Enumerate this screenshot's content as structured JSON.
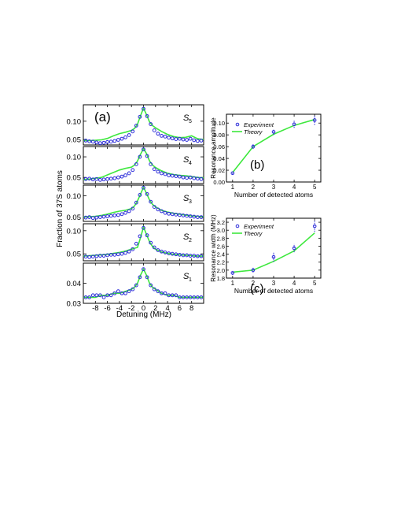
{
  "figure": {
    "panel_a_label": "(a)",
    "panel_b_label": "(b)",
    "panel_c_label": "(c)",
    "a_ylabel": "Fraction of 37S atoms",
    "a_xlabel": "Detuning (MHz)",
    "legend_experiment": "Experiment",
    "legend_theory": "Theory",
    "colors": {
      "experiment": "#2b2bd9",
      "theory": "#3ee83e",
      "axes": "#000000"
    }
  },
  "chart_data": [
    {
      "type": "line",
      "panel": "a",
      "x_range": [
        -10,
        10
      ],
      "x_ticks": [
        -8,
        -6,
        -4,
        -2,
        0,
        2,
        4,
        6,
        8
      ],
      "x_tick_labels": [
        "-8",
        "-6",
        "-4",
        "-2",
        "0",
        "2",
        "4",
        "6",
        "8"
      ],
      "xlabel": "Detuning (MHz)",
      "ylabel": "Fraction of 37S atoms",
      "subplots": [
        {
          "label": "S",
          "label_sub": "5",
          "ylim": [
            0.035,
            0.145
          ],
          "yticks": [
            0.05,
            0.1
          ],
          "ytick_labels": [
            "0.05",
            "0.10"
          ],
          "experiment": {
            "x": [
              -9.6,
              -9.0,
              -8.4,
              -7.8,
              -7.2,
              -6.6,
              -6.0,
              -5.4,
              -4.8,
              -4.2,
              -3.6,
              -3.0,
              -2.4,
              -1.8,
              -1.2,
              -0.6,
              0,
              0.6,
              1.2,
              1.8,
              2.4,
              3.0,
              3.6,
              4.2,
              4.8,
              5.4,
              6.0,
              6.6,
              7.2,
              7.8,
              8.4,
              9.0,
              9.6
            ],
            "y": [
              0.047,
              0.045,
              0.044,
              0.042,
              0.04,
              0.041,
              0.043,
              0.044,
              0.046,
              0.049,
              0.052,
              0.056,
              0.062,
              0.072,
              0.088,
              0.112,
              0.134,
              0.114,
              0.092,
              0.075,
              0.066,
              0.06,
              0.058,
              0.055,
              0.053,
              0.051,
              0.052,
              0.05,
              0.049,
              0.052,
              0.048,
              0.046,
              0.047
            ]
          },
          "theory": {
            "x": [
              -10,
              -9,
              -8,
              -7,
              -6,
              -5,
              -4,
              -3,
              -2,
              -1.5,
              -1,
              -0.5,
              0,
              0.5,
              1,
              1.5,
              2,
              3,
              4,
              5,
              6,
              7,
              8,
              9,
              10
            ],
            "y": [
              0.047,
              0.047,
              0.048,
              0.049,
              0.053,
              0.06,
              0.066,
              0.07,
              0.075,
              0.08,
              0.092,
              0.115,
              0.136,
              0.118,
              0.098,
              0.088,
              0.082,
              0.072,
              0.064,
              0.058,
              0.055,
              0.056,
              0.06,
              0.052,
              0.05
            ]
          }
        },
        {
          "label": "S",
          "label_sub": "4",
          "ylim": [
            0.035,
            0.125
          ],
          "yticks": [
            0.05,
            0.1
          ],
          "ytick_labels": [
            "0.05",
            "0.10"
          ],
          "experiment": {
            "x": [
              -9.6,
              -9.0,
              -8.4,
              -7.8,
              -7.2,
              -6.6,
              -6.0,
              -5.4,
              -4.8,
              -4.2,
              -3.6,
              -3.0,
              -2.4,
              -1.8,
              -1.2,
              -0.6,
              0,
              0.6,
              1.2,
              1.8,
              2.4,
              3.0,
              3.6,
              4.2,
              4.8,
              5.4,
              6.0,
              6.6,
              7.2,
              7.8,
              8.4,
              9.0,
              9.6
            ],
            "y": [
              0.046,
              0.047,
              0.045,
              0.046,
              0.044,
              0.045,
              0.046,
              0.047,
              0.048,
              0.05,
              0.052,
              0.055,
              0.06,
              0.068,
              0.082,
              0.1,
              0.118,
              0.102,
              0.082,
              0.07,
              0.064,
              0.06,
              0.058,
              0.055,
              0.054,
              0.053,
              0.052,
              0.05,
              0.049,
              0.05,
              0.048,
              0.047,
              0.046
            ]
          },
          "theory": {
            "x": [
              -10,
              -9,
              -8,
              -7,
              -6,
              -5,
              -4,
              -3,
              -2,
              -1.5,
              -1,
              -0.5,
              0,
              0.5,
              1,
              1.5,
              2,
              3,
              4,
              5,
              6,
              7,
              8,
              9,
              10
            ],
            "y": [
              0.045,
              0.046,
              0.048,
              0.05,
              0.056,
              0.062,
              0.068,
              0.072,
              0.075,
              0.08,
              0.09,
              0.106,
              0.12,
              0.108,
              0.09,
              0.08,
              0.074,
              0.066,
              0.06,
              0.057,
              0.055,
              0.054,
              0.052,
              0.05,
              0.049
            ]
          }
        },
        {
          "label": "S",
          "label_sub": "3",
          "ylim": [
            0.04,
            0.125
          ],
          "yticks": [
            0.05,
            0.1
          ],
          "ytick_labels": [
            "0.05",
            "0.10"
          ],
          "experiment": {
            "x": [
              -9.6,
              -9.0,
              -8.4,
              -7.8,
              -7.2,
              -6.6,
              -6.0,
              -5.4,
              -4.8,
              -4.2,
              -3.6,
              -3.0,
              -2.4,
              -1.8,
              -1.2,
              -0.6,
              0,
              0.6,
              1.2,
              1.8,
              2.4,
              3.0,
              3.6,
              4.2,
              4.8,
              5.4,
              6.0,
              6.6,
              7.2,
              7.8,
              8.4,
              9.0,
              9.6
            ],
            "y": [
              0.049,
              0.05,
              0.048,
              0.049,
              0.05,
              0.051,
              0.052,
              0.053,
              0.054,
              0.055,
              0.057,
              0.06,
              0.064,
              0.07,
              0.084,
              0.102,
              0.119,
              0.104,
              0.086,
              0.074,
              0.068,
              0.064,
              0.06,
              0.058,
              0.057,
              0.056,
              0.055,
              0.054,
              0.053,
              0.052,
              0.051,
              0.05,
              0.05
            ]
          },
          "theory": {
            "x": [
              -10,
              -9,
              -8,
              -7,
              -6,
              -5,
              -4,
              -3,
              -2,
              -1.5,
              -1,
              -0.5,
              0,
              0.5,
              1,
              1.5,
              2,
              3,
              4,
              5,
              6,
              7,
              8,
              9,
              10
            ],
            "y": [
              0.05,
              0.051,
              0.052,
              0.054,
              0.057,
              0.061,
              0.064,
              0.066,
              0.07,
              0.076,
              0.088,
              0.104,
              0.12,
              0.106,
              0.09,
              0.08,
              0.074,
              0.066,
              0.062,
              0.059,
              0.057,
              0.055,
              0.053,
              0.052,
              0.051
            ]
          }
        },
        {
          "label": "S",
          "label_sub": "2",
          "ylim": [
            0.035,
            0.115
          ],
          "yticks": [
            0.05,
            0.1
          ],
          "ytick_labels": [
            "0.05",
            "0.10"
          ],
          "experiment": {
            "x": [
              -9.6,
              -9.0,
              -8.4,
              -7.8,
              -7.2,
              -6.6,
              -6.0,
              -5.4,
              -4.8,
              -4.2,
              -3.6,
              -3.0,
              -2.4,
              -1.8,
              -1.2,
              -0.6,
              0,
              0.6,
              1.2,
              1.8,
              2.4,
              3.0,
              3.6,
              4.2,
              4.8,
              5.4,
              6.0,
              6.6,
              7.2,
              7.8,
              8.4,
              9.0,
              9.6
            ],
            "y": [
              0.044,
              0.043,
              0.044,
              0.045,
              0.046,
              0.046,
              0.047,
              0.048,
              0.048,
              0.049,
              0.05,
              0.052,
              0.055,
              0.06,
              0.072,
              0.088,
              0.106,
              0.09,
              0.074,
              0.064,
              0.058,
              0.055,
              0.053,
              0.051,
              0.05,
              0.049,
              0.048,
              0.047,
              0.047,
              0.046,
              0.046,
              0.045,
              0.045
            ]
          },
          "theory": {
            "x": [
              -10,
              -9,
              -8,
              -7,
              -6,
              -5,
              -4,
              -3,
              -2,
              -1.5,
              -1,
              -0.5,
              0,
              0.5,
              1,
              1.5,
              2,
              3,
              4,
              5,
              6,
              7,
              8,
              9,
              10
            ],
            "y": [
              0.045,
              0.046,
              0.047,
              0.048,
              0.049,
              0.051,
              0.053,
              0.056,
              0.06,
              0.062,
              0.064,
              0.085,
              0.108,
              0.092,
              0.076,
              0.066,
              0.06,
              0.054,
              0.051,
              0.049,
              0.048,
              0.047,
              0.046,
              0.045,
              0.045
            ]
          }
        },
        {
          "label": "S",
          "label_sub": "1",
          "ylim": [
            0.03,
            0.05
          ],
          "yticks": [
            0.03,
            0.04
          ],
          "ytick_labels": [
            "0.03",
            "0.04"
          ],
          "experiment": {
            "x": [
              -9.6,
              -9.0,
              -8.4,
              -7.8,
              -7.2,
              -6.6,
              -6.0,
              -5.4,
              -4.8,
              -4.2,
              -3.6,
              -3.0,
              -2.4,
              -1.8,
              -1.2,
              -0.6,
              0,
              0.6,
              1.2,
              1.8,
              2.4,
              3.0,
              3.6,
              4.2,
              4.8,
              5.4,
              6.0,
              6.6,
              7.2,
              7.8,
              8.4,
              9.0,
              9.6
            ],
            "y": [
              0.033,
              0.033,
              0.034,
              0.034,
              0.034,
              0.033,
              0.034,
              0.034,
              0.035,
              0.036,
              0.035,
              0.035,
              0.036,
              0.037,
              0.039,
              0.043,
              0.047,
              0.043,
              0.039,
              0.037,
              0.036,
              0.035,
              0.035,
              0.034,
              0.034,
              0.034,
              0.033,
              0.033,
              0.033,
              0.033,
              0.033,
              0.033,
              0.033
            ]
          },
          "theory": {
            "x": [
              -10,
              -9,
              -8,
              -7,
              -6,
              -5,
              -4,
              -3,
              -2,
              -1.5,
              -1,
              -0.5,
              0,
              0.5,
              1,
              1.5,
              2,
              3,
              4,
              5,
              6,
              7,
              8,
              9,
              10
            ],
            "y": [
              0.033,
              0.033,
              0.033,
              0.034,
              0.034,
              0.035,
              0.035,
              0.036,
              0.037,
              0.038,
              0.04,
              0.044,
              0.047,
              0.044,
              0.04,
              0.038,
              0.037,
              0.035,
              0.034,
              0.034,
              0.033,
              0.033,
              0.033,
              0.033,
              0.033
            ]
          }
        }
      ]
    },
    {
      "type": "line",
      "panel": "b",
      "xlabel": "Number of detected atoms",
      "ylabel": "Resonance amplitude",
      "xlim": [
        0.7,
        5.3
      ],
      "ylim": [
        0.0,
        0.115
      ],
      "x_ticks": [
        1,
        2,
        3,
        4,
        5
      ],
      "y_ticks": [
        0.0,
        0.02,
        0.04,
        0.06,
        0.08,
        0.1
      ],
      "y_tick_labels": [
        "0.00",
        "0.02",
        "0.04",
        "0.06",
        "0.08",
        "0.10"
      ],
      "legend": "top-left",
      "series": [
        {
          "name": "Experiment",
          "x": [
            1,
            2,
            3,
            4,
            5
          ],
          "y": [
            0.015,
            0.06,
            0.085,
            0.098,
            0.105
          ],
          "yerr": [
            0.002,
            0.004,
            0.005,
            0.006,
            0.008
          ]
        },
        {
          "name": "Theory",
          "x": [
            1,
            2,
            3,
            4,
            5
          ],
          "y": [
            0.016,
            0.06,
            0.081,
            0.096,
            0.106
          ]
        }
      ]
    },
    {
      "type": "line",
      "panel": "c",
      "xlabel": "Number of detected atoms",
      "ylabel": "Resonance width (MHz)",
      "xlim": [
        0.7,
        5.3
      ],
      "ylim": [
        1.8,
        3.3
      ],
      "x_ticks": [
        1,
        2,
        3,
        4,
        5
      ],
      "y_ticks": [
        1.8,
        2.0,
        2.2,
        2.4,
        2.6,
        2.8,
        3.0,
        3.2
      ],
      "y_tick_labels": [
        "1.8",
        "2.0",
        "2.2",
        "2.4",
        "2.6",
        "2.8",
        "3.0",
        "3.2"
      ],
      "legend": "top-left",
      "series": [
        {
          "name": "Experiment",
          "x": [
            1,
            2,
            3,
            4,
            5
          ],
          "y": [
            1.93,
            2.0,
            2.33,
            2.55,
            3.1
          ],
          "yerr": [
            0.05,
            0.06,
            0.12,
            0.1,
            0.14
          ]
        },
        {
          "name": "Theory",
          "x": [
            1,
            2,
            3,
            4,
            5
          ],
          "y": [
            1.95,
            2.0,
            2.22,
            2.48,
            2.93
          ]
        }
      ]
    }
  ]
}
